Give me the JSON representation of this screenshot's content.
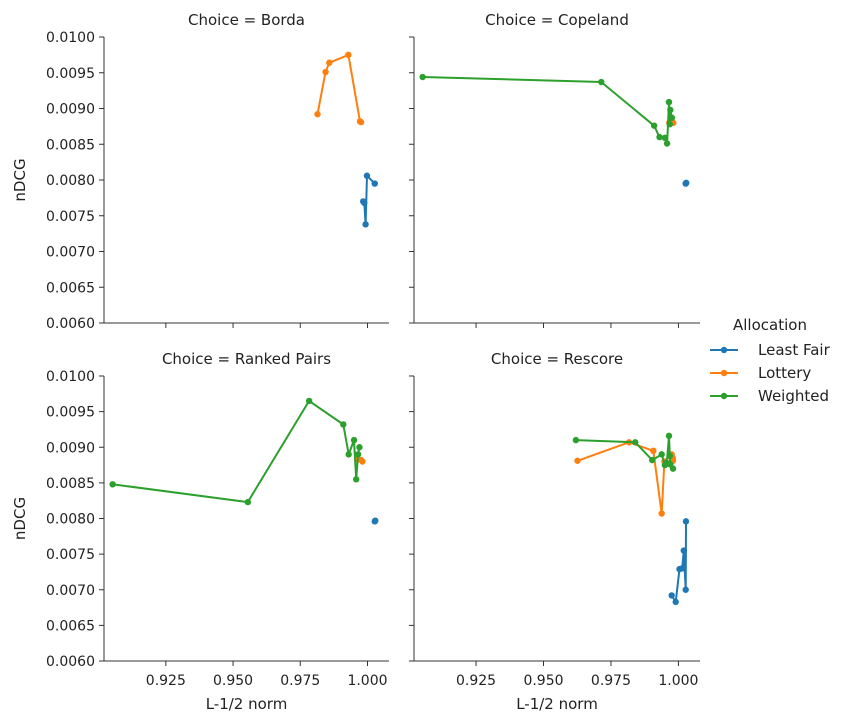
{
  "chart_data": {
    "type": "line",
    "xlabel": "L-1/2 norm",
    "ylabel": "nDCG",
    "xlim": [
      0.902,
      1.008
    ],
    "ylim": [
      0.006,
      0.01
    ],
    "xticks": [
      "0.925",
      "0.950",
      "0.975",
      "1.000"
    ],
    "xtick_values": [
      0.925,
      0.95,
      0.975,
      1.0
    ],
    "yticks": [
      "0.0060",
      "0.0065",
      "0.0070",
      "0.0075",
      "0.0080",
      "0.0085",
      "0.0090",
      "0.0095",
      "0.0100"
    ],
    "ytick_values": [
      0.006,
      0.0065,
      0.007,
      0.0075,
      0.008,
      0.0085,
      0.009,
      0.0095,
      0.01
    ],
    "legend": {
      "title": "Allocation",
      "placement": "right",
      "entries": [
        {
          "name": "Least Fair",
          "color": "#1f77b4"
        },
        {
          "name": "Lottery",
          "color": "#ff7f0e"
        },
        {
          "name": "Weighted",
          "color": "#2ca02c"
        }
      ]
    },
    "panels": [
      {
        "title": "Choice = Borda",
        "series": [
          {
            "name": "Least Fair",
            "x": [
              0.9984,
              0.9988,
              0.9993,
              0.9998,
              1.0027
            ],
            "y": [
              0.0077,
              0.00768,
              0.00738,
              0.00806,
              0.00795
            ]
          },
          {
            "name": "Lottery",
            "x": [
              0.9814,
              0.9844,
              0.9858,
              0.9929,
              0.9972,
              0.9976
            ],
            "y": [
              0.00892,
              0.00951,
              0.00964,
              0.00975,
              0.00882,
              0.00881
            ]
          }
        ]
      },
      {
        "title": "Choice = Copeland",
        "series": [
          {
            "name": "Least Fair",
            "x": [
              1.0027,
              1.0029
            ],
            "y": [
              0.00795,
              0.00796
            ]
          },
          {
            "name": "Lottery",
            "x": [
              0.9966,
              0.9976,
              0.9981
            ],
            "y": [
              0.0088,
              0.00882,
              0.0088
            ]
          },
          {
            "name": "Weighted",
            "x": [
              0.9052,
              0.9714,
              0.991,
              0.993,
              0.995,
              0.9958,
              0.9965,
              0.9968,
              0.997,
              0.9976
            ],
            "y": [
              0.00944,
              0.00937,
              0.00876,
              0.0086,
              0.00859,
              0.00851,
              0.00909,
              0.00878,
              0.00898,
              0.00887
            ]
          }
        ]
      },
      {
        "title": "Choice = Ranked Pairs",
        "series": [
          {
            "name": "Least Fair",
            "x": [
              1.0027,
              1.0029
            ],
            "y": [
              0.00796,
              0.00797
            ]
          },
          {
            "name": "Lottery",
            "x": [
              0.9966,
              0.9976,
              0.9981
            ],
            "y": [
              0.00883,
              0.00882,
              0.0088
            ]
          },
          {
            "name": "Weighted",
            "x": [
              0.9052,
              0.9555,
              0.9783,
              0.991,
              0.993,
              0.995,
              0.9958,
              0.9965,
              0.997
            ],
            "y": [
              0.00848,
              0.00823,
              0.00965,
              0.00932,
              0.0089,
              0.0091,
              0.00855,
              0.0089,
              0.009
            ]
          }
        ]
      },
      {
        "title": "Choice = Rescore",
        "series": [
          {
            "name": "Least Fair",
            "x": [
              0.9975,
              0.999,
              1.0004,
              1.0014,
              1.002,
              1.0027,
              1.0028
            ],
            "y": [
              0.00692,
              0.00683,
              0.00729,
              0.0073,
              0.00755,
              0.007,
              0.00796
            ]
          },
          {
            "name": "Lottery",
            "x": [
              0.9626,
              0.9817,
              0.9907,
              0.9938,
              0.9948,
              0.9975,
              0.9979,
              0.998
            ],
            "y": [
              0.00881,
              0.00907,
              0.00895,
              0.00807,
              0.0088,
              0.0089,
              0.00885,
              0.00881
            ]
          },
          {
            "name": "Weighted",
            "x": [
              0.962,
              0.984,
              0.9903,
              0.9938,
              0.995,
              0.9957,
              0.9965,
              0.9968,
              0.997,
              0.998
            ],
            "y": [
              0.0091,
              0.00907,
              0.00882,
              0.0089,
              0.00875,
              0.00878,
              0.00916,
              0.00888,
              0.00876,
              0.0087
            ]
          }
        ]
      }
    ]
  }
}
